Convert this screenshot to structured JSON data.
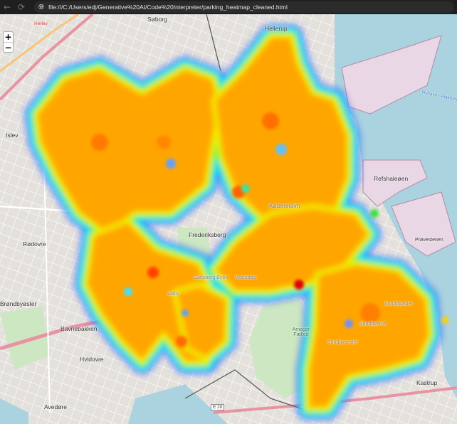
{
  "browser": {
    "back_icon": "arrow-left-icon",
    "reload_icon": "reload-icon",
    "site_icon": "globe-icon",
    "url": "file:///C:/Users/edj/Generative%20AI/Code%20Interpreter/parking_heatmap_cleaned.html"
  },
  "map": {
    "zoom_in": "+",
    "zoom_out": "−",
    "heatmap_colors": [
      "#0000ff",
      "#00ffff",
      "#00ff00",
      "#ffff00",
      "#ff8000",
      "#ff0000"
    ],
    "water_color": "#aad3df",
    "places": {
      "soborg": "Søborg",
      "hellerup": "Hellerup",
      "herlev": "Herlev",
      "islev": "Islev",
      "rodovre": "Rødovre",
      "frederiksberg": "Frederiksberg",
      "kobenhavn": "København",
      "refshaleoen": "Refshaleøen",
      "provestenen": "Prøvestenen",
      "brondbyoster": "Brøndbyøster",
      "bavnebakken": "Bavnebakken",
      "hvidovre": "Hvidovre",
      "avedore": "Avedøre",
      "kastrup": "Kastrup",
      "amager_faelled": "Amager Fælled",
      "carlsberg": "Carlsberg Byen",
      "vesterbro": "Vesterbro",
      "sundbyerne": "Sundbyerne",
      "sundbyoster": "Sundbyøster",
      "sundbyvester": "Sundbyvester",
      "valby": "Valby"
    },
    "road_labels": {
      "e20": "E 20",
      "nyhavn": "Nyhavn - Flakfortet"
    }
  }
}
